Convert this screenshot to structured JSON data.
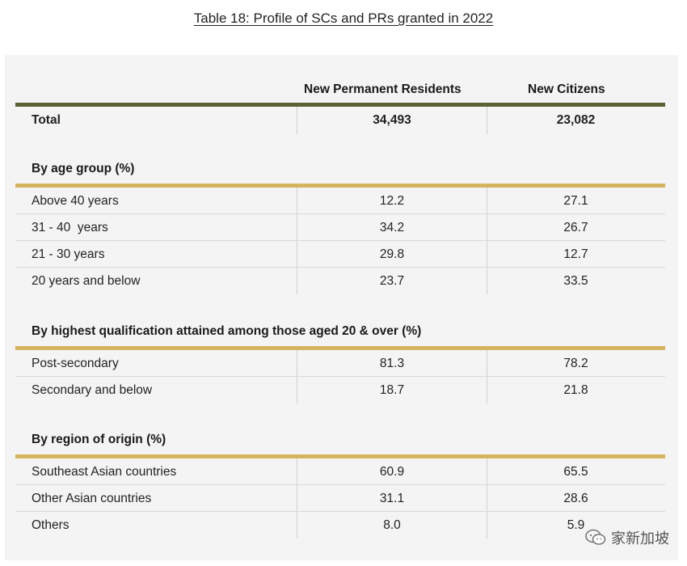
{
  "title": "Table 18: Profile of SCs and PRs granted in 2022",
  "columns": [
    "New Permanent Residents",
    "New Citizens"
  ],
  "total": {
    "label": "Total",
    "pr": "34,493",
    "sc": "23,082"
  },
  "sections": [
    {
      "heading": "By age group (%)",
      "rows": [
        {
          "label": "Above 40 years",
          "pr": "12.2",
          "sc": "27.1"
        },
        {
          "label": "31 - 40  years",
          "pr": "34.2",
          "sc": "26.7"
        },
        {
          "label": "21 - 30 years",
          "pr": "29.8",
          "sc": "12.7"
        },
        {
          "label": "20 years and below",
          "pr": "23.7",
          "sc": "33.5"
        }
      ]
    },
    {
      "heading": "By highest qualification attained among those aged 20 & over (%)",
      "rows": [
        {
          "label": "Post-secondary",
          "pr": "81.3",
          "sc": "78.2"
        },
        {
          "label": "Secondary and below",
          "pr": "18.7",
          "sc": "21.8"
        }
      ]
    },
    {
      "heading": "By region of origin (%)",
      "rows": [
        {
          "label": "Southeast Asian countries",
          "pr": "60.9",
          "sc": "65.5"
        },
        {
          "label": "Other Asian countries",
          "pr": "31.1",
          "sc": "28.6"
        },
        {
          "label": "Others",
          "pr": "8.0",
          "sc": "5.9"
        }
      ]
    }
  ],
  "watermark": {
    "text": "家新加坡",
    "icon": "wechat-icon"
  },
  "colors": {
    "header_rule": "#5a6135",
    "section_rule": "#d6b35e",
    "panel_bg": "#f4f4f4"
  }
}
